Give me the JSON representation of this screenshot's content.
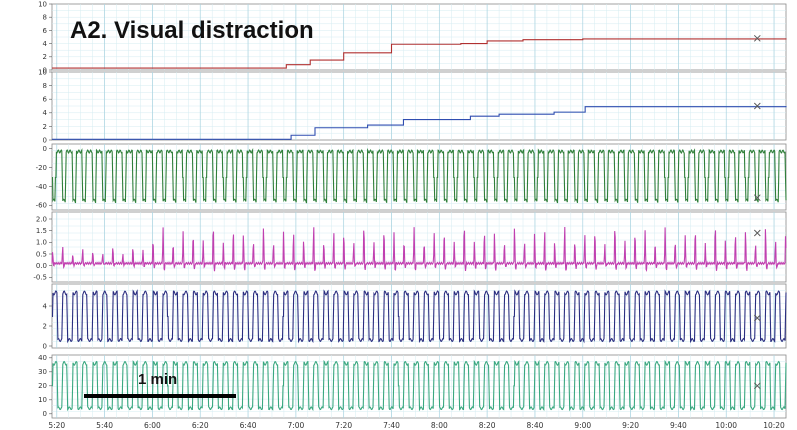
{
  "title": "A2. Visual distraction",
  "scale_bar": {
    "label": "1 min",
    "color": "#000000"
  },
  "chart_data": {
    "type": "line",
    "x": {
      "ticks": [
        "5:20",
        "5:40",
        "6:00",
        "6:20",
        "6:40",
        "7:00",
        "7:20",
        "7:40",
        "8:00",
        "8:20",
        "8:40",
        "9:00",
        "9:20",
        "9:40",
        "10:00",
        "10:20"
      ],
      "range_seconds": [
        318,
        625
      ]
    },
    "grid": true,
    "panels": [
      {
        "color": "#b03030",
        "ylim": [
          0,
          10
        ],
        "yticks": [
          "0",
          "2",
          "4",
          "6",
          "8",
          "10"
        ],
        "signal": {
          "kind": "step",
          "levels": [
            [
              318,
              0.3
            ],
            [
              416,
              0.8
            ],
            [
              426,
              1.5
            ],
            [
              440,
              2.6
            ],
            [
              460,
              3.9
            ],
            [
              489,
              4.0
            ],
            [
              500,
              4.4
            ],
            [
              515,
              4.6
            ],
            [
              540,
              4.7
            ],
            [
              625,
              4.8
            ]
          ]
        },
        "marker_x": 613,
        "marker_y": 4.8
      },
      {
        "color": "#2f4db0",
        "ylim": [
          0,
          10
        ],
        "yticks": [
          "0",
          "2",
          "4",
          "6",
          "8",
          "10"
        ],
        "signal": {
          "kind": "step",
          "levels": [
            [
              318,
              0.1
            ],
            [
              418,
              0.7
            ],
            [
              428,
              1.8
            ],
            [
              450,
              2.2
            ],
            [
              465,
              3.0
            ],
            [
              493,
              3.5
            ],
            [
              505,
              3.8
            ],
            [
              528,
              4.1
            ],
            [
              541,
              4.9
            ],
            [
              625,
              5.0
            ]
          ]
        },
        "marker_x": 613,
        "marker_y": 5.0
      },
      {
        "color": "#2f7f3a",
        "ylim": [
          -65,
          5
        ],
        "yticks": [
          "0",
          "-20",
          "-40",
          "-60"
        ],
        "signal": {
          "kind": "dips",
          "base": -3,
          "low": -58,
          "period": 4.2,
          "duty": 0.4
        },
        "marker_x": 613,
        "marker_y": -52
      },
      {
        "color": "#c040b0",
        "ylim": [
          -0.7,
          2.3
        ],
        "yticks": [
          "-0.5",
          "0.0",
          "0.5",
          "1.0",
          "1.5",
          "2.0"
        ],
        "signal": {
          "kind": "spikes",
          "base": 0.1,
          "peak": 1.5,
          "period": 4.2
        },
        "marker_x": 613,
        "marker_y": 1.4
      },
      {
        "color": "#2a2e80",
        "ylim": [
          -0.2,
          6.2
        ],
        "yticks": [
          "0",
          "2",
          "4"
        ],
        "signal": {
          "kind": "square",
          "high": 5.3,
          "low": 0.6,
          "period": 4.2,
          "duty": 0.5
        },
        "marker_x": 613,
        "marker_y": 2.8
      },
      {
        "color": "#3aa880",
        "ylim": [
          -3,
          42
        ],
        "yticks": [
          "0",
          "10",
          "20",
          "30",
          "40"
        ],
        "signal": {
          "kind": "square",
          "high": 36,
          "low": 4,
          "period": 4.2,
          "duty": 0.5
        },
        "marker_x": 613,
        "marker_y": 20
      }
    ]
  }
}
